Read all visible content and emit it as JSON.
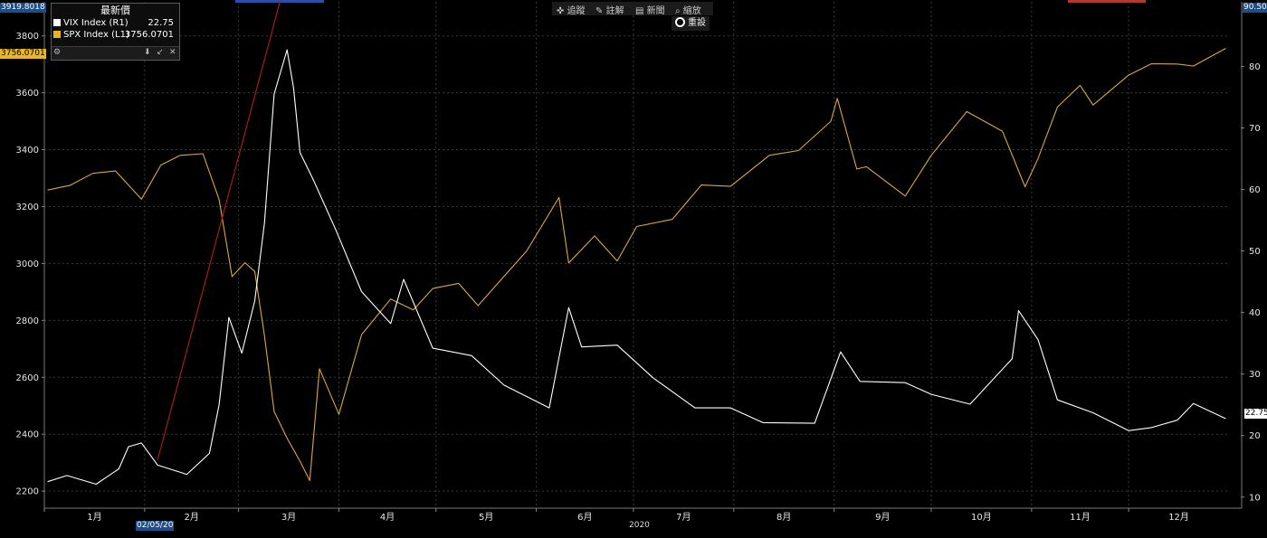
{
  "legend": {
    "title": "最新價",
    "series": [
      {
        "label": "VIX Index (R1)",
        "value": "22.75",
        "color": "#ffffff"
      },
      {
        "label": "SPX Index (L1)",
        "value": "3756.0701",
        "color": "#e9b51f"
      }
    ]
  },
  "toolbar": {
    "items": [
      {
        "icon": "crosshair-icon",
        "label": "追蹤"
      },
      {
        "icon": "pencil-icon",
        "label": "註解"
      },
      {
        "icon": "news-icon",
        "label": "新聞"
      },
      {
        "icon": "magnifier-icon",
        "label": "縮放"
      }
    ],
    "reset_label": "重設"
  },
  "tags": {
    "left_top": "3919.8018",
    "left_last": "3756.0701",
    "right_top": "90.50",
    "right_last": "22.75",
    "date_marker": "02/05/20",
    "year": "2020"
  },
  "colors": {
    "vix": "#ffffff",
    "spx": "#d9a93a",
    "trend": "#b01e1e",
    "grid": "#3a3a3a",
    "last_price_tag": "#e8b627",
    "top_tag": "#2a6fb8"
  },
  "chart_data": {
    "type": "line",
    "title": "",
    "x_tick_labels": [
      "1月",
      "2月",
      "3月",
      "4月",
      "5月",
      "6月",
      "7月",
      "8月",
      "9月",
      "10月",
      "11月",
      "12月"
    ],
    "y_left": {
      "label": "SPX Index (L1)",
      "ticks": [
        2200,
        2400,
        2600,
        2800,
        3000,
        3200,
        3400,
        3600,
        3800
      ],
      "range": [
        2140,
        3919.8
      ]
    },
    "y_right": {
      "label": "VIX Index (R1)",
      "ticks": [
        10,
        20,
        30,
        40,
        50,
        60,
        70,
        80
      ],
      "range": [
        8.2,
        90.5
      ]
    },
    "grid": true,
    "legend_placement": "top-left",
    "series": [
      {
        "name": "SPX Index (L1)",
        "axis": "left",
        "points": [
          [
            "2020-01-02",
            3258
          ],
          [
            "2020-01-09",
            3275
          ],
          [
            "2020-01-16",
            3317
          ],
          [
            "2020-01-23",
            3325
          ],
          [
            "2020-01-31",
            3226
          ],
          [
            "2020-02-06",
            3346
          ],
          [
            "2020-02-12",
            3380
          ],
          [
            "2020-02-19",
            3386
          ],
          [
            "2020-02-24",
            3225
          ],
          [
            "2020-02-28",
            2954
          ],
          [
            "2020-03-03",
            3003
          ],
          [
            "2020-03-06",
            2972
          ],
          [
            "2020-03-09",
            2747
          ],
          [
            "2020-03-12",
            2480
          ],
          [
            "2020-03-16",
            2386
          ],
          [
            "2020-03-20",
            2305
          ],
          [
            "2020-03-23",
            2237
          ],
          [
            "2020-03-26",
            2630
          ],
          [
            "2020-04-01",
            2470
          ],
          [
            "2020-04-08",
            2750
          ],
          [
            "2020-04-17",
            2875
          ],
          [
            "2020-04-24",
            2837
          ],
          [
            "2020-04-30",
            2912
          ],
          [
            "2020-05-08",
            2930
          ],
          [
            "2020-05-14",
            2852
          ],
          [
            "2020-05-22",
            2955
          ],
          [
            "2020-05-29",
            3044
          ],
          [
            "2020-06-08",
            3232
          ],
          [
            "2020-06-11",
            3002
          ],
          [
            "2020-06-19",
            3097
          ],
          [
            "2020-06-26",
            3009
          ],
          [
            "2020-07-02",
            3130
          ],
          [
            "2020-07-13",
            3155
          ],
          [
            "2020-07-22",
            3276
          ],
          [
            "2020-07-31",
            3271
          ],
          [
            "2020-08-12",
            3380
          ],
          [
            "2020-08-21",
            3397
          ],
          [
            "2020-08-31",
            3500
          ],
          [
            "2020-09-02",
            3580
          ],
          [
            "2020-09-08",
            3332
          ],
          [
            "2020-09-11",
            3340
          ],
          [
            "2020-09-23",
            3237
          ],
          [
            "2020-10-01",
            3380
          ],
          [
            "2020-10-12",
            3534
          ],
          [
            "2020-10-23",
            3465
          ],
          [
            "2020-10-30",
            3270
          ],
          [
            "2020-11-03",
            3369
          ],
          [
            "2020-11-09",
            3550
          ],
          [
            "2020-11-16",
            3626
          ],
          [
            "2020-11-20",
            3557
          ],
          [
            "2020-12-01",
            3662
          ],
          [
            "2020-12-08",
            3702
          ],
          [
            "2020-12-16",
            3701
          ],
          [
            "2020-12-21",
            3694
          ],
          [
            "2020-12-31",
            3756
          ]
        ]
      },
      {
        "name": "VIX Index (R1)",
        "axis": "right",
        "points": [
          [
            "2020-01-02",
            12.5
          ],
          [
            "2020-01-08",
            13.5
          ],
          [
            "2020-01-17",
            12.1
          ],
          [
            "2020-01-24",
            14.6
          ],
          [
            "2020-01-27",
            18.2
          ],
          [
            "2020-01-31",
            18.8
          ],
          [
            "2020-02-05",
            15.2
          ],
          [
            "2020-02-14",
            13.7
          ],
          [
            "2020-02-21",
            17.1
          ],
          [
            "2020-02-24",
            25.0
          ],
          [
            "2020-02-27",
            39.2
          ],
          [
            "2020-03-02",
            33.4
          ],
          [
            "2020-03-06",
            41.9
          ],
          [
            "2020-03-09",
            54.5
          ],
          [
            "2020-03-12",
            75.5
          ],
          [
            "2020-03-16",
            82.7
          ],
          [
            "2020-03-18",
            76.5
          ],
          [
            "2020-03-20",
            66.0
          ],
          [
            "2020-03-24",
            61.7
          ],
          [
            "2020-03-31",
            53.5
          ],
          [
            "2020-04-08",
            43.4
          ],
          [
            "2020-04-17",
            38.2
          ],
          [
            "2020-04-21",
            45.4
          ],
          [
            "2020-04-30",
            34.2
          ],
          [
            "2020-05-12",
            33.0
          ],
          [
            "2020-05-22",
            28.2
          ],
          [
            "2020-06-05",
            24.5
          ],
          [
            "2020-06-11",
            40.8
          ],
          [
            "2020-06-15",
            34.4
          ],
          [
            "2020-06-26",
            34.7
          ],
          [
            "2020-07-07",
            29.4
          ],
          [
            "2020-07-20",
            24.5
          ],
          [
            "2020-07-31",
            24.5
          ],
          [
            "2020-08-10",
            22.1
          ],
          [
            "2020-08-26",
            22.0
          ],
          [
            "2020-09-03",
            33.6
          ],
          [
            "2020-09-09",
            28.8
          ],
          [
            "2020-09-23",
            28.6
          ],
          [
            "2020-10-01",
            26.7
          ],
          [
            "2020-10-13",
            25.1
          ],
          [
            "2020-10-26",
            32.5
          ],
          [
            "2020-10-28",
            40.3
          ],
          [
            "2020-11-03",
            35.6
          ],
          [
            "2020-11-09",
            25.8
          ],
          [
            "2020-11-20",
            23.7
          ],
          [
            "2020-12-01",
            20.8
          ],
          [
            "2020-12-08",
            21.3
          ],
          [
            "2020-12-16",
            22.5
          ],
          [
            "2020-12-21",
            25.2
          ],
          [
            "2020-12-31",
            22.75
          ]
        ]
      },
      {
        "name": "",
        "axis": "left",
        "style": "trend",
        "points": [
          [
            "2020-02-05",
            2310
          ],
          [
            "2020-03-18",
            4100
          ]
        ]
      }
    ]
  }
}
